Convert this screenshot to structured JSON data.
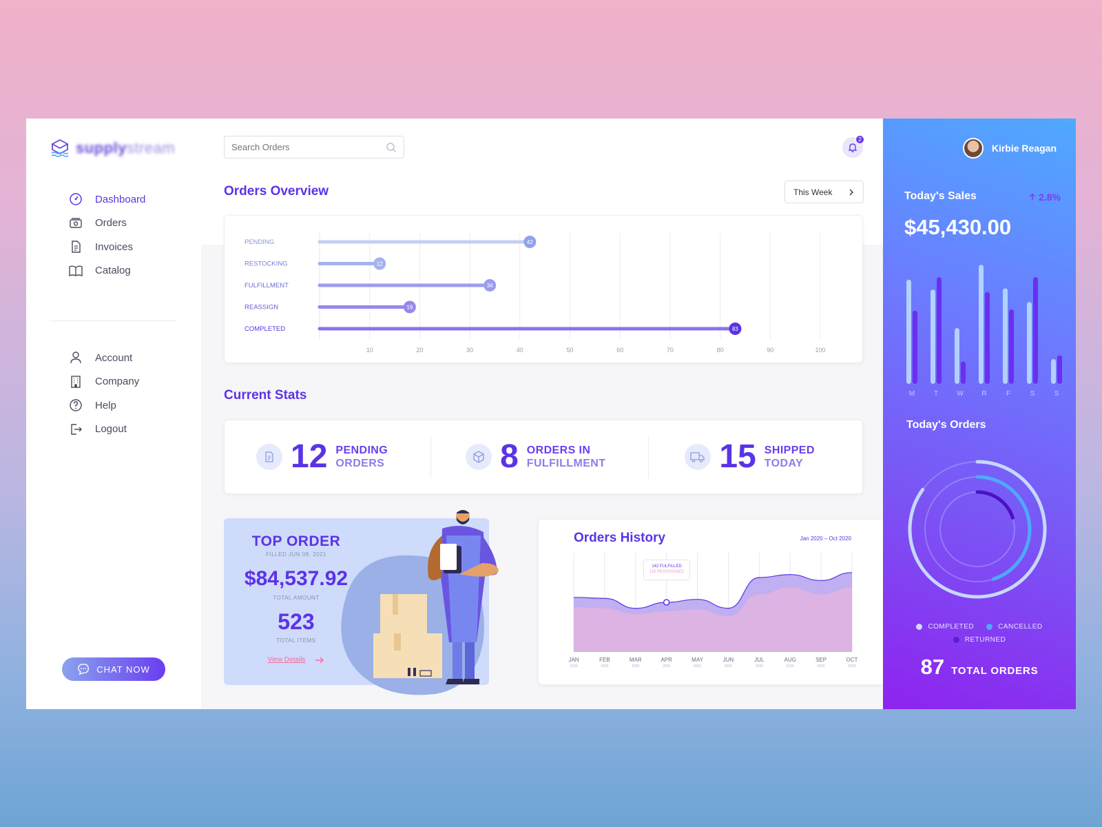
{
  "brand": {
    "name_bold": "supply",
    "name_light": "stream"
  },
  "nav": {
    "primary": [
      {
        "label": "Dashboard",
        "icon": "dashboard-icon",
        "active": true
      },
      {
        "label": "Orders",
        "icon": "orders-icon"
      },
      {
        "label": "Invoices",
        "icon": "invoice-icon"
      },
      {
        "label": "Catalog",
        "icon": "book-icon"
      }
    ],
    "secondary": [
      {
        "label": "Account",
        "icon": "user-icon"
      },
      {
        "label": "Company",
        "icon": "building-icon"
      },
      {
        "label": "Help",
        "icon": "help-icon"
      },
      {
        "label": "Logout",
        "icon": "logout-icon"
      }
    ],
    "chat_label": "CHAT NOW"
  },
  "search": {
    "placeholder": "Search Orders"
  },
  "notifications": {
    "count": "2"
  },
  "overview": {
    "title": "Orders Overview",
    "range_label": "This Week"
  },
  "stats": {
    "title": "Current Stats",
    "items": [
      {
        "value": "12",
        "line1": "PENDING",
        "line2": "ORDERS",
        "icon": "document-icon"
      },
      {
        "value": "8",
        "line1": "ORDERS IN",
        "line2": "FULFILLMENT",
        "icon": "box-icon"
      },
      {
        "value": "15",
        "line1": "SHIPPED",
        "line2": "TODAY",
        "icon": "truck-icon"
      }
    ]
  },
  "top_order": {
    "title": "TOP ORDER",
    "filled": "FILLED JUN 08, 2021",
    "amount": "$84,537.92",
    "amount_label": "TOTAL AMOUNT",
    "items": "523",
    "items_label": "TOTAL ITEMS",
    "link": "View Details"
  },
  "history": {
    "title": "Orders History",
    "range": "Jan 2020 – Oct 2020",
    "tooltip_line1": "142 FULFILLED",
    "tooltip_line2": "118 REASSIGNED"
  },
  "user": {
    "name": "Kirbie Reagan"
  },
  "sales": {
    "title": "Today's Sales",
    "growth": "2.8%",
    "amount": "$45,430.00"
  },
  "today_orders": {
    "title": "Today's Orders",
    "legend": [
      "COMPLETED",
      "CANCELLED",
      "RETURNED"
    ],
    "total": "87",
    "total_label": "TOTAL ORDERS"
  },
  "colors": {
    "accent": "#5b33e6",
    "light_accent": "#8a7ee8",
    "panel_start": "#4fa9ff",
    "panel_end": "#8e23ef"
  },
  "chart_data": [
    {
      "type": "bar",
      "orientation": "horizontal",
      "categories": [
        "PENDING",
        "RESTOCKING",
        "FULFILLMENT",
        "REASSIGN",
        "COMPLETED"
      ],
      "values": [
        42,
        12,
        34,
        18,
        83
      ],
      "xticks": [
        10,
        20,
        30,
        40,
        50,
        60,
        70,
        80,
        90,
        100
      ],
      "xlim": [
        0,
        100
      ]
    },
    {
      "type": "bar",
      "categories": [
        "M",
        "T",
        "W",
        "R",
        "F",
        "S",
        "S"
      ],
      "series": [
        {
          "values": [
            84,
            76,
            45,
            96,
            77,
            66,
            20
          ]
        },
        {
          "values": [
            59,
            86,
            18,
            74,
            60,
            86,
            23
          ]
        }
      ],
      "ylim": [
        0,
        100
      ]
    },
    {
      "type": "area",
      "x": [
        "JAN",
        "FEB",
        "MAR",
        "APR",
        "MAY",
        "JUN",
        "JUL",
        "AUG",
        "SEP",
        "OCT"
      ],
      "x_sub": "2020",
      "series": [
        {
          "values": [
            55,
            54,
            44,
            50,
            53,
            44,
            75,
            78,
            72,
            80
          ]
        },
        {
          "values": [
            45,
            44,
            38,
            41,
            43,
            36,
            58,
            65,
            58,
            65
          ]
        }
      ],
      "ylim": [
        0,
        100
      ]
    },
    {
      "type": "pie",
      "variant": "radial",
      "categories": [
        "COMPLETED",
        "CANCELLED",
        "RETURNED"
      ],
      "values": [
        0.85,
        0.45,
        0.2
      ]
    }
  ]
}
